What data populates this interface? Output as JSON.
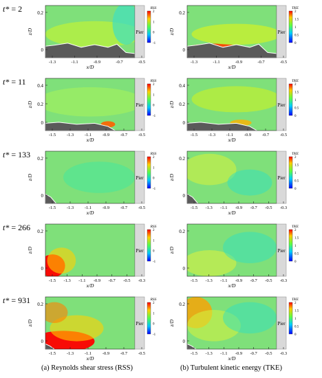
{
  "rows": [
    {
      "label_var": "t*",
      "label_eq": " = 2",
      "rss": {
        "yticks": [
          "0.2",
          "0"
        ],
        "xticks": [
          "-1.3",
          "-1.1",
          "-0.9",
          "-0.7",
          "-0.5"
        ],
        "cbar_title": "RSS",
        "cbar_ticks": [
          "2",
          "1",
          "0",
          "-1"
        ],
        "xlabel": "x/D",
        "ylabel": "z/D",
        "pier": "Pier"
      },
      "tke": {
        "yticks": [
          "0.2",
          "0"
        ],
        "xticks": [
          "-1.3",
          "-1.1",
          "-0.9",
          "-0.7",
          "-0.5"
        ],
        "cbar_title": "TKE",
        "cbar_ticks": [
          "2",
          "1.5",
          "1",
          "0.5",
          "0"
        ],
        "xlabel": "x/D",
        "ylabel": "z/D",
        "pier": "Pier"
      }
    },
    {
      "label_var": "t*",
      "label_eq": " = 11",
      "rss": {
        "yticks": [
          "0.4",
          "0.2",
          "0"
        ],
        "xticks": [
          "-1.5",
          "-1.3",
          "-1.1",
          "-0.9",
          "-0.7",
          "-0.5"
        ],
        "cbar_title": "RSS",
        "cbar_ticks": [
          "2",
          "1",
          "0",
          "-1"
        ],
        "xlabel": "x/D",
        "ylabel": "z/D",
        "pier": "Pier"
      },
      "tke": {
        "yticks": [
          "0.4",
          "0.2",
          "0"
        ],
        "xticks": [
          "-1.5",
          "-1.3",
          "-1.1",
          "-0.9",
          "-0.7",
          "-0.5"
        ],
        "cbar_title": "TKE",
        "cbar_ticks": [
          "2",
          "1.5",
          "1",
          "0.5",
          "0"
        ],
        "xlabel": "x/D",
        "ylabel": "z/D",
        "pier": "Pier"
      }
    },
    {
      "label_var": "t*",
      "label_eq": " = 133",
      "rss": {
        "yticks": [
          "0.2",
          "0"
        ],
        "xticks": [
          "-1.5",
          "-1.3",
          "-1.1",
          "-0.9",
          "-0.7",
          "-0.5"
        ],
        "cbar_title": "RSS",
        "cbar_ticks": [
          "2",
          "1",
          "0",
          "-1"
        ],
        "xlabel": "x/D",
        "ylabel": "z/D",
        "pier": "Pier"
      },
      "tke": {
        "yticks": [
          "0.2",
          "0"
        ],
        "xticks": [
          "-1.5",
          "-1.3",
          "-1.1",
          "-0.9",
          "-0.7",
          "-0.5",
          "-0.3"
        ],
        "cbar_title": "TKE",
        "cbar_ticks": [
          "2",
          "1.5",
          "1",
          "0.5",
          "0"
        ],
        "xlabel": "x/D",
        "ylabel": "z/D",
        "pier": "Pier"
      }
    },
    {
      "label_var": "t*",
      "label_eq": " = 266",
      "rss": {
        "yticks": [
          "0.2",
          "0"
        ],
        "xticks": [
          "-1.5",
          "-1.3",
          "-1.1",
          "-0.9",
          "-0.7",
          "-0.5",
          "-0.3"
        ],
        "cbar_title": "RSS",
        "cbar_ticks": [
          "2",
          "1",
          "0",
          "-1"
        ],
        "xlabel": "x/D",
        "ylabel": "z/D",
        "pier": "Pier"
      },
      "tke": {
        "yticks": [
          "0.2",
          "0"
        ],
        "xticks": [
          "-1.5",
          "-1.3",
          "-1.1",
          "-0.9",
          "-0.7",
          "-0.5",
          "-0.3"
        ],
        "cbar_title": "TKE",
        "cbar_ticks": [
          "2",
          "1.5",
          "1",
          "0.5",
          "0"
        ],
        "xlabel": "x/D",
        "ylabel": "z/D",
        "pier": "Pier"
      }
    },
    {
      "label_var": "t*",
      "label_eq": " = 931",
      "rss": {
        "yticks": [
          "0.2",
          "0"
        ],
        "xticks": [
          "-1.5",
          "-1.3",
          "-1.1",
          "-0.9",
          "-0.7",
          "-0.5"
        ],
        "cbar_title": "RSS",
        "cbar_ticks": [
          "2",
          "1",
          "0",
          "-1"
        ],
        "xlabel": "x/D",
        "ylabel": "z/D",
        "pier": "Pier"
      },
      "tke": {
        "yticks": [
          "0.2",
          "0"
        ],
        "xticks": [
          "-1.5",
          "-1.3",
          "-1.1",
          "-0.9",
          "-0.7",
          "-0.5",
          "-0.3"
        ],
        "cbar_title": "TKE",
        "cbar_ticks": [
          "2",
          "1.5",
          "1",
          "0.5",
          "0"
        ],
        "xlabel": "x/D",
        "ylabel": "z/D",
        "pier": "Pier"
      }
    }
  ],
  "captions": {
    "rss": "(a) Reynolds shear stress (RSS)",
    "tke": "(b) Turbulent kinetic energy (TKE)"
  },
  "colors": {
    "background_field": "#7fe07a",
    "bed": "#5a5a5a",
    "pier": "#d9d9d9",
    "high": "#ff0000"
  }
}
